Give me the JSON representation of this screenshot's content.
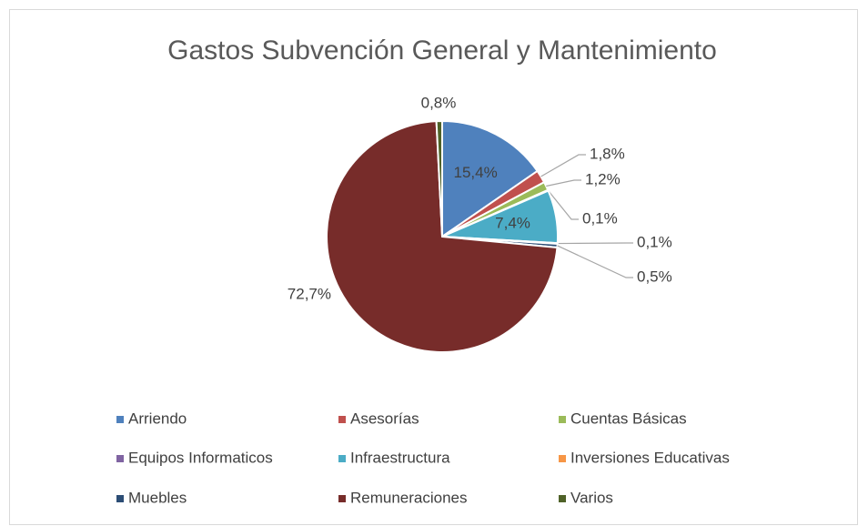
{
  "chart_data": {
    "type": "pie",
    "title": "Gastos Subvención General y Mantenimiento",
    "categories": [
      "Arriendo",
      "Asesorías",
      "Cuentas Básicas",
      "Equipos Informaticos",
      "Infraestructura",
      "Inversiones Educativas",
      "Muebles",
      "Remuneraciones",
      "Varios"
    ],
    "values": [
      15.4,
      1.8,
      1.2,
      0.1,
      7.4,
      0.1,
      0.5,
      72.7,
      0.8
    ],
    "value_labels": [
      "15,4%",
      "1,8%",
      "1,2%",
      "0,1%",
      "7,4%",
      "0,1%",
      "0,5%",
      "72,7%",
      "0,8%"
    ],
    "colors": [
      "#4f81bd",
      "#c0504d",
      "#9bbb59",
      "#8064a2",
      "#4bacc6",
      "#f79646",
      "#2c4d75",
      "#772c2a",
      "#4f6228"
    ],
    "legend": "bottom"
  }
}
